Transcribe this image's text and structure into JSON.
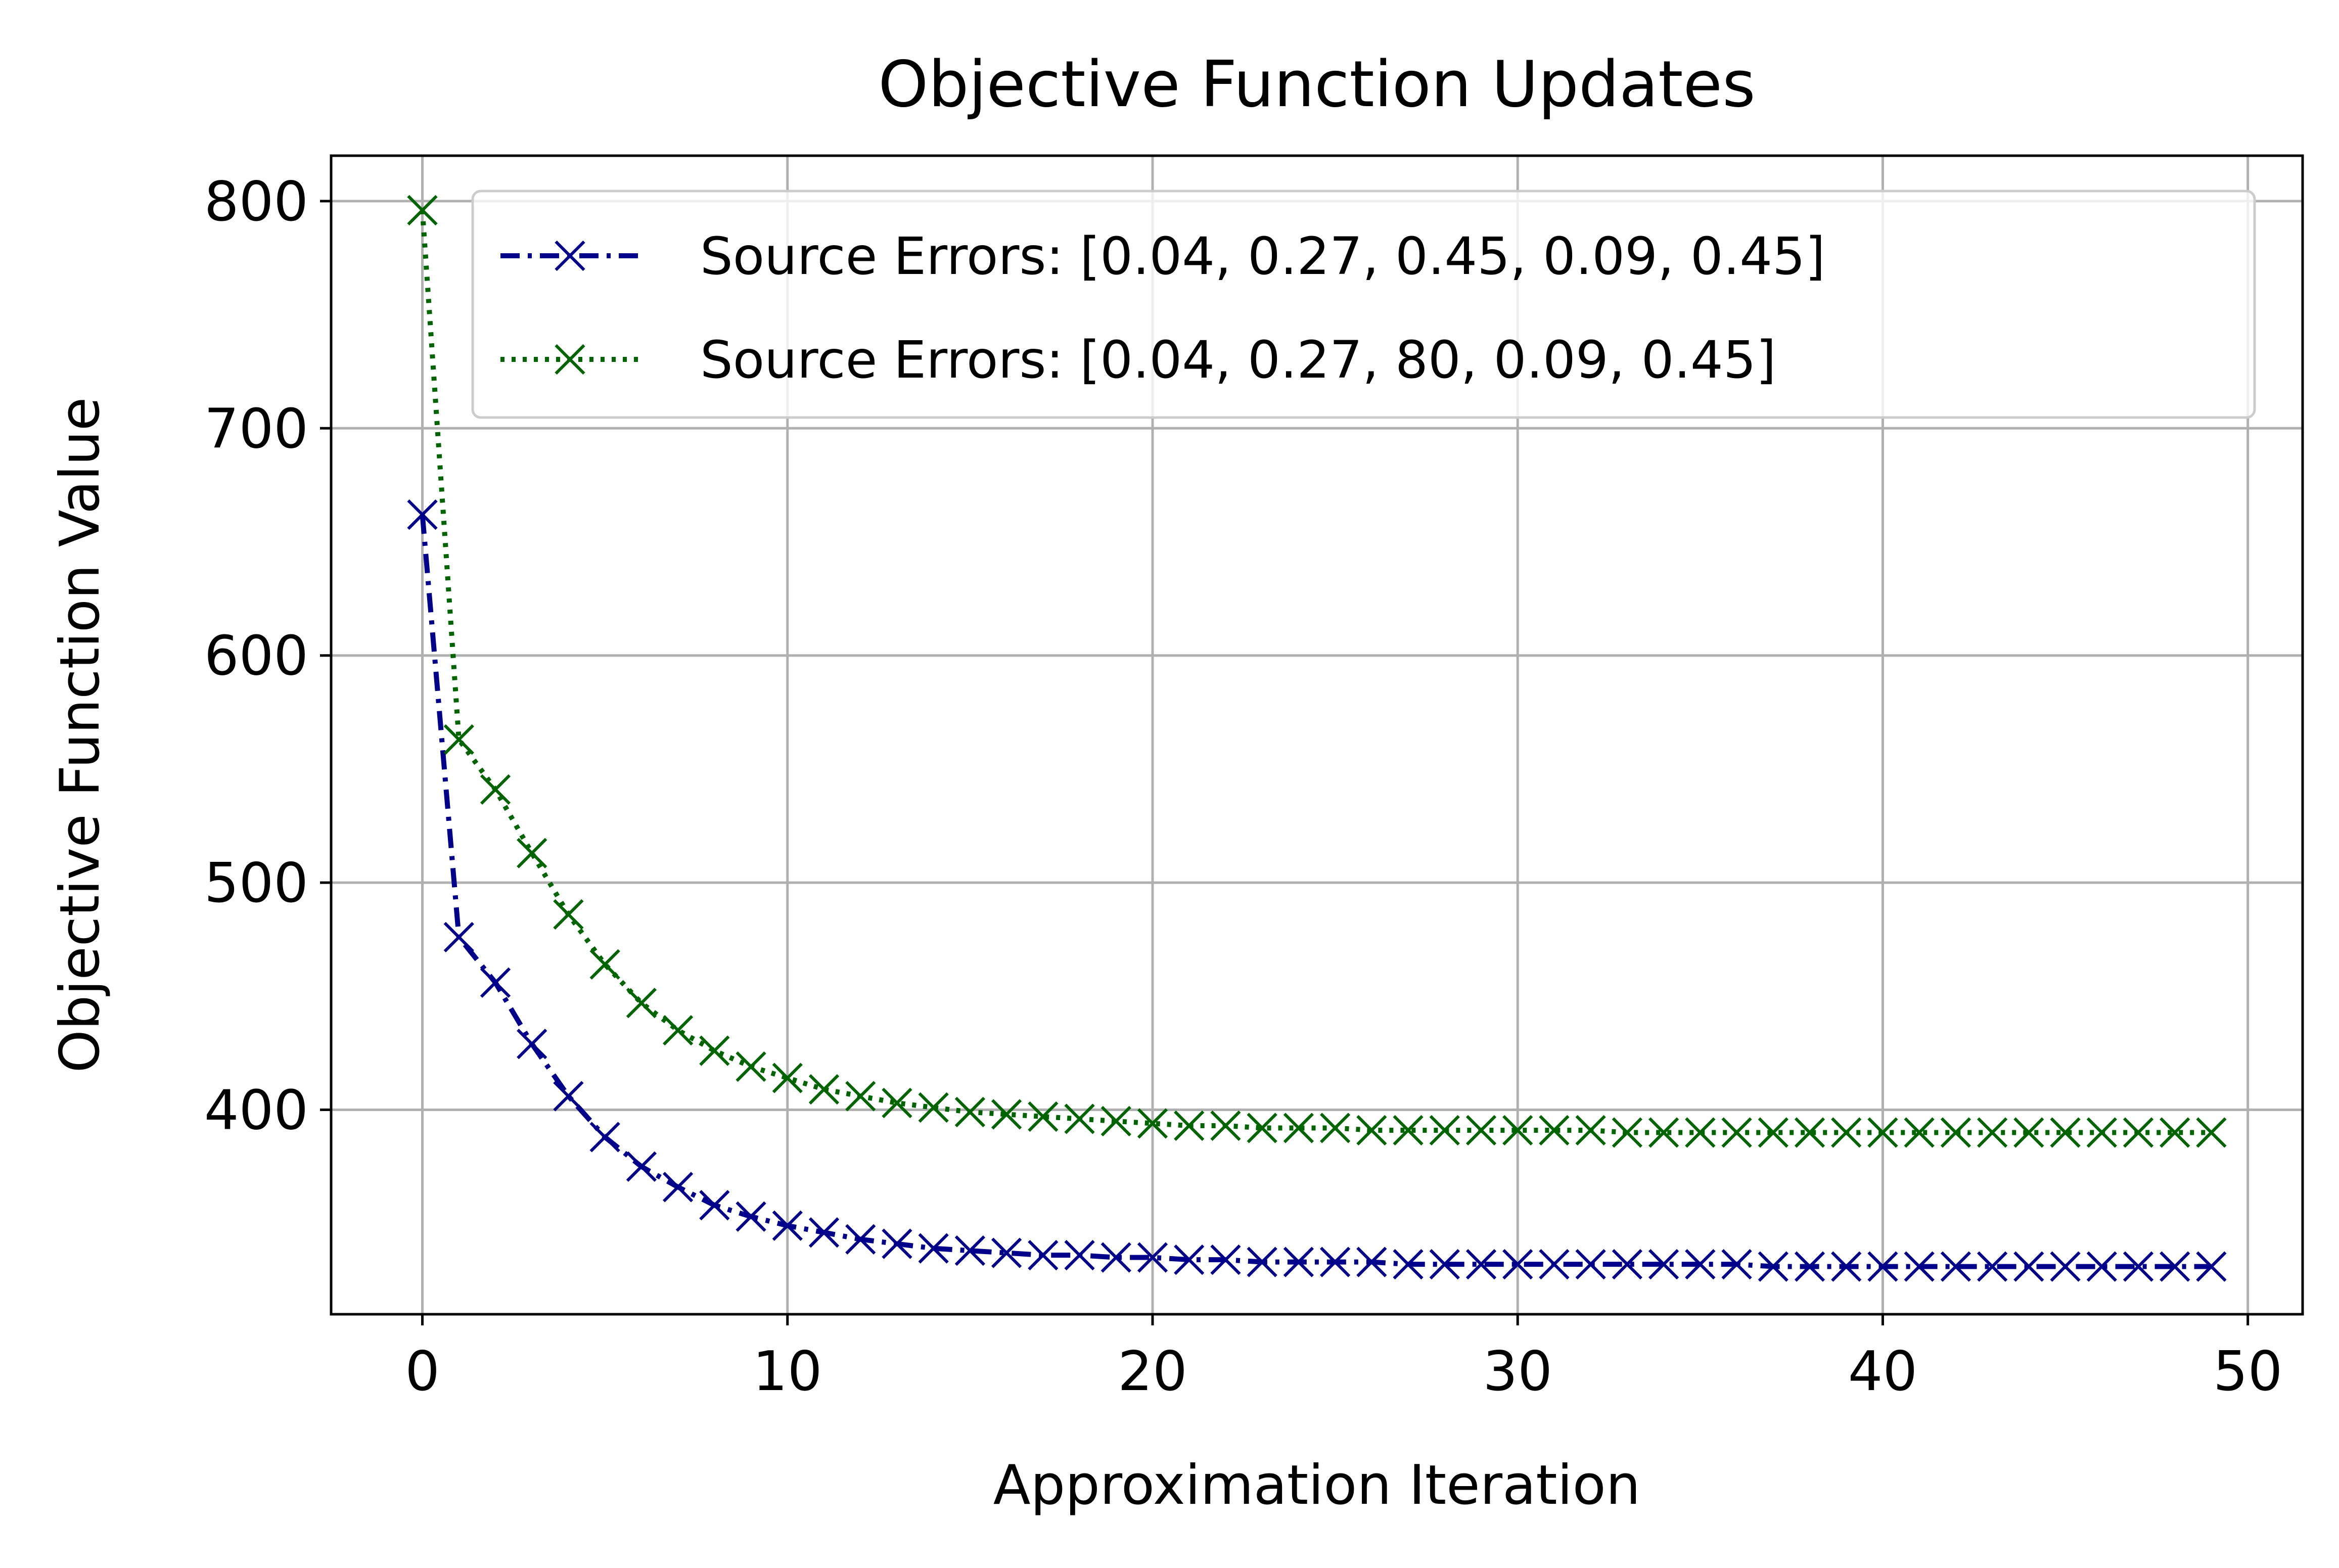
{
  "chart_data": {
    "type": "line",
    "title": "Objective Function Updates",
    "xlabel": "Approximation Iteration",
    "ylabel": "Objective Function Value",
    "xlim": [
      -2.5,
      51.5
    ],
    "ylim": [
      310,
      820
    ],
    "xticks": [
      0,
      10,
      20,
      30,
      40,
      50
    ],
    "yticks": [
      400,
      500,
      600,
      700,
      800
    ],
    "grid": true,
    "legend_position": "top-right",
    "series": [
      {
        "name": "Source Errors: [0.04, 0.27, 0.45, 0.09, 0.45]",
        "color": "#00008b",
        "line_style": "dash-dot",
        "marker": "x",
        "x": [
          0,
          1,
          2,
          3,
          4,
          5,
          6,
          7,
          8,
          9,
          10,
          11,
          12,
          13,
          14,
          15,
          16,
          17,
          18,
          19,
          20,
          21,
          22,
          23,
          24,
          25,
          26,
          27,
          28,
          29,
          30,
          31,
          32,
          33,
          34,
          35,
          36,
          37,
          38,
          39,
          40,
          41,
          42,
          43,
          44,
          45,
          46,
          47,
          48,
          49
        ],
        "values": [
          662,
          476,
          456,
          429,
          406,
          388,
          375,
          366,
          358,
          353,
          349,
          346,
          343,
          341,
          339,
          338,
          337,
          336,
          336,
          335,
          335,
          334,
          334,
          333,
          333,
          333,
          333,
          332,
          332,
          332,
          332,
          332,
          332,
          332,
          332,
          332,
          332,
          331,
          331,
          331,
          331,
          331,
          331,
          331,
          331,
          331,
          331,
          331,
          331,
          331
        ]
      },
      {
        "name": "Source Errors: [0.04, 0.27, 80, 0.09, 0.45]",
        "color": "#006400",
        "line_style": "dotted",
        "marker": "x",
        "x": [
          0,
          1,
          2,
          3,
          4,
          5,
          6,
          7,
          8,
          9,
          10,
          11,
          12,
          13,
          14,
          15,
          16,
          17,
          18,
          19,
          20,
          21,
          22,
          23,
          24,
          25,
          26,
          27,
          28,
          29,
          30,
          31,
          32,
          33,
          34,
          35,
          36,
          37,
          38,
          39,
          40,
          41,
          42,
          43,
          44,
          45,
          46,
          47,
          48,
          49
        ],
        "values": [
          796,
          563,
          541,
          513,
          486,
          464,
          447,
          435,
          426,
          419,
          414,
          409,
          406,
          403,
          401,
          399,
          398,
          397,
          396,
          395,
          394,
          393,
          393,
          392,
          392,
          392,
          391,
          391,
          391,
          391,
          391,
          391,
          391,
          390,
          390,
          390,
          390,
          390,
          390,
          390,
          390,
          390,
          390,
          390,
          390,
          390,
          390,
          390,
          390,
          390
        ]
      }
    ]
  }
}
